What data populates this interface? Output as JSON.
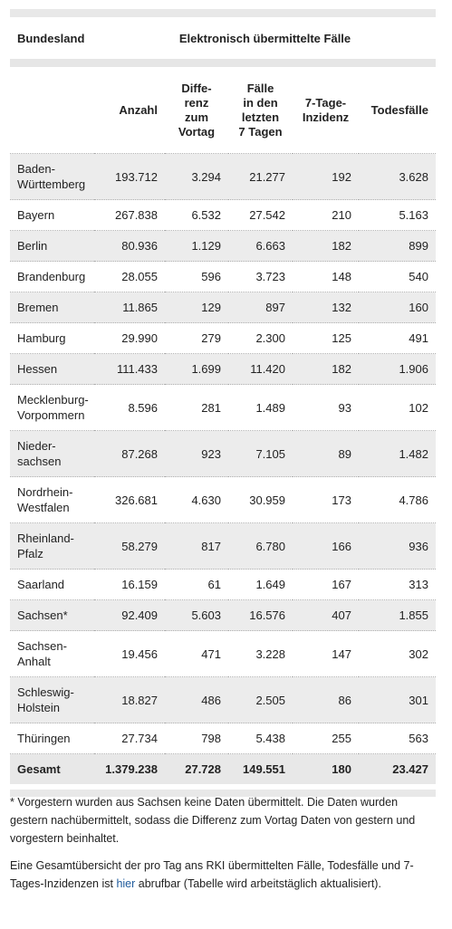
{
  "table": {
    "col_bundesland": "Bundesland",
    "group_header": "Elektronisch übermittelte Fälle",
    "col_anzahl": "Anzahl",
    "col_differenz": "Diffe-\nrenz\nzum\nVortag",
    "col_faelle7": "Fälle\nin den\nletzten\n7 Tagen",
    "col_inzidenz": "7-Tage-\nInzidenz",
    "col_todesfaelle": "Todesfälle",
    "rows": [
      {
        "name": "Baden-\nWürttemberg",
        "anzahl": "193.712",
        "diff": "3.294",
        "f7": "21.277",
        "inz": "192",
        "tod": "3.628"
      },
      {
        "name": "Bayern",
        "anzahl": "267.838",
        "diff": "6.532",
        "f7": "27.542",
        "inz": "210",
        "tod": "5.163"
      },
      {
        "name": "Berlin",
        "anzahl": "80.936",
        "diff": "1.129",
        "f7": "6.663",
        "inz": "182",
        "tod": "899"
      },
      {
        "name": "Brandenburg",
        "anzahl": "28.055",
        "diff": "596",
        "f7": "3.723",
        "inz": "148",
        "tod": "540"
      },
      {
        "name": "Bremen",
        "anzahl": "11.865",
        "diff": "129",
        "f7": "897",
        "inz": "132",
        "tod": "160"
      },
      {
        "name": "Hamburg",
        "anzahl": "29.990",
        "diff": "279",
        "f7": "2.300",
        "inz": "125",
        "tod": "491"
      },
      {
        "name": "Hessen",
        "anzahl": "111.433",
        "diff": "1.699",
        "f7": "11.420",
        "inz": "182",
        "tod": "1.906"
      },
      {
        "name": "Mecklenburg-\nVorpommern",
        "anzahl": "8.596",
        "diff": "281",
        "f7": "1.489",
        "inz": "93",
        "tod": "102"
      },
      {
        "name": "Nieder-\nsachsen",
        "anzahl": "87.268",
        "diff": "923",
        "f7": "7.105",
        "inz": "89",
        "tod": "1.482"
      },
      {
        "name": "Nordrhein-\nWestfalen",
        "anzahl": "326.681",
        "diff": "4.630",
        "f7": "30.959",
        "inz": "173",
        "tod": "4.786"
      },
      {
        "name": "Rheinland-\nPfalz",
        "anzahl": "58.279",
        "diff": "817",
        "f7": "6.780",
        "inz": "166",
        "tod": "936"
      },
      {
        "name": "Saarland",
        "anzahl": "16.159",
        "diff": "61",
        "f7": "1.649",
        "inz": "167",
        "tod": "313"
      },
      {
        "name": "Sachsen*",
        "anzahl": "92.409",
        "diff": "5.603",
        "f7": "16.576",
        "inz": "407",
        "tod": "1.855"
      },
      {
        "name": "Sachsen-\nAnhalt",
        "anzahl": "19.456",
        "diff": "471",
        "f7": "3.228",
        "inz": "147",
        "tod": "302"
      },
      {
        "name": "Schleswig-\nHolstein",
        "anzahl": "18.827",
        "diff": "486",
        "f7": "2.505",
        "inz": "86",
        "tod": "301"
      },
      {
        "name": "Thüringen",
        "anzahl": "27.734",
        "diff": "798",
        "f7": "5.438",
        "inz": "255",
        "tod": "563"
      }
    ],
    "total": {
      "name": "Gesamt",
      "anzahl": "1.379.238",
      "diff": "27.728",
      "f7": "149.551",
      "inz": "180",
      "tod": "23.427"
    }
  },
  "footnote": "* Vorgestern wurden aus Sachsen keine Daten übermittelt. Die Daten wurden gestern nachübermittelt, sodass die Differenz zum Vortag Daten von gestern und vorgestern beinhaltet.",
  "summary_before": "Eine Gesamtübersicht der pro Tag ans RKI übermittelten Fälle, Todesfälle und 7-Tages-Inzidenzen ist ",
  "summary_link": "hier",
  "summary_after": " abrufbar (Tabelle wird arbeitstäglich aktualisiert)."
}
